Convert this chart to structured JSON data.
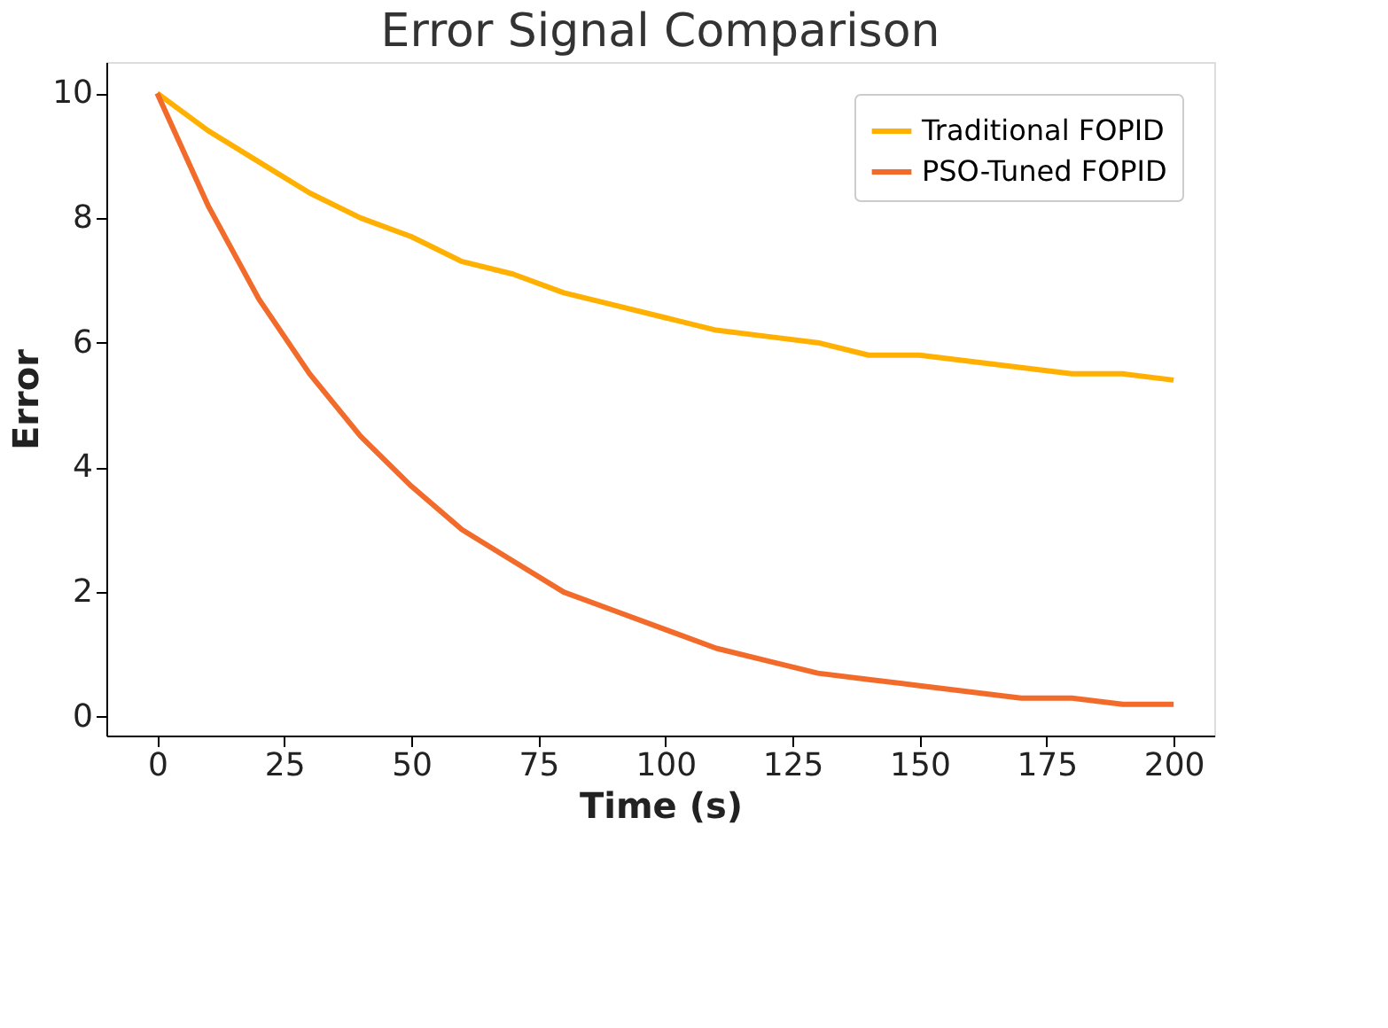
{
  "chart_data": {
    "type": "line",
    "title": "Error Signal Comparison",
    "xlabel": "Time (s)",
    "ylabel": "Error",
    "x": [
      0,
      10,
      20,
      30,
      40,
      50,
      60,
      70,
      80,
      90,
      100,
      110,
      120,
      130,
      140,
      150,
      160,
      170,
      180,
      190,
      200
    ],
    "series": [
      {
        "name": "Traditional FOPID",
        "color": "#ffb000",
        "values": [
          10,
          9.4,
          8.9,
          8.4,
          8.0,
          7.7,
          7.3,
          7.1,
          6.8,
          6.6,
          6.4,
          6.2,
          6.1,
          6.0,
          5.8,
          5.8,
          5.7,
          5.6,
          5.5,
          5.5,
          5.4
        ]
      },
      {
        "name": "PSO-Tuned FOPID",
        "color": "#f26b2a",
        "values": [
          10,
          8.2,
          6.7,
          5.5,
          4.5,
          3.7,
          3.0,
          2.5,
          2.0,
          1.7,
          1.4,
          1.1,
          0.9,
          0.7,
          0.6,
          0.5,
          0.4,
          0.3,
          0.3,
          0.2,
          0.2
        ]
      }
    ],
    "xlim": [
      -10,
      208
    ],
    "ylim": [
      -0.3,
      10.5
    ],
    "xticks": [
      0,
      25,
      50,
      75,
      100,
      125,
      150,
      175,
      200
    ],
    "yticks": [
      0,
      2,
      4,
      6,
      8,
      10
    ],
    "grid": false,
    "legend": "top right",
    "marker": "none",
    "line_style": "solid"
  }
}
